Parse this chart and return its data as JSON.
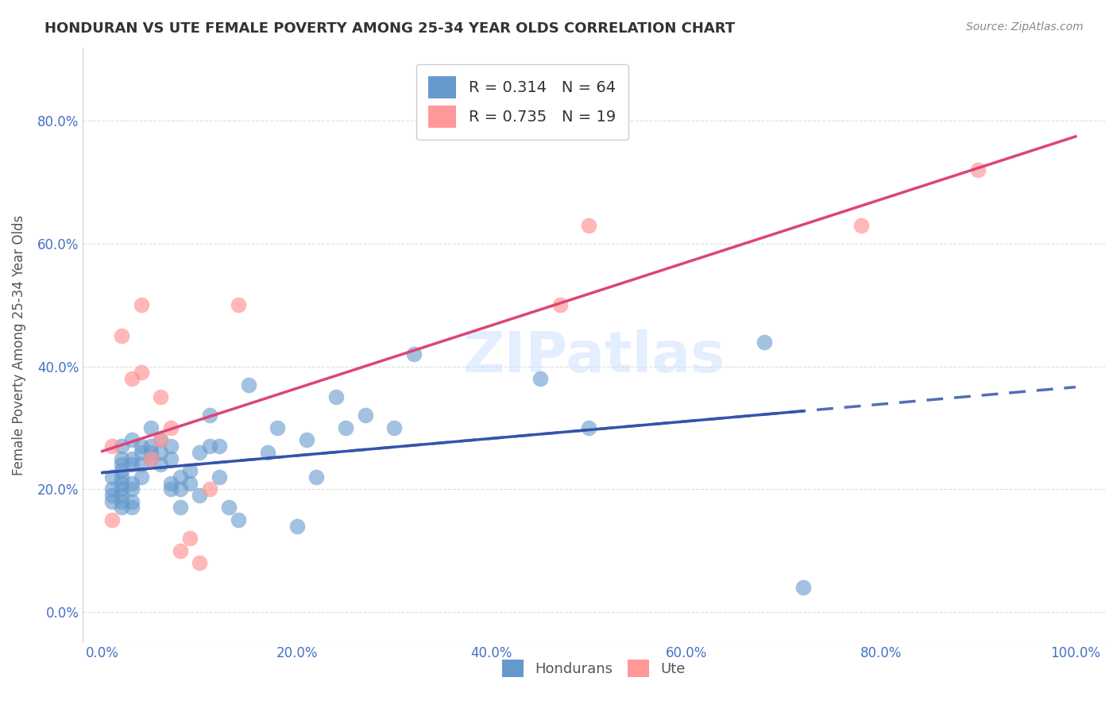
{
  "title": "HONDURAN VS UTE FEMALE POVERTY AMONG 25-34 YEAR OLDS CORRELATION CHART",
  "source": "Source: ZipAtlas.com",
  "ylabel": "Female Poverty Among 25-34 Year Olds",
  "xlabel_color": "#4472c4",
  "ylabel_color": "#333333",
  "watermark": "ZIPatlas",
  "xlim": [
    0.0,
    1.0
  ],
  "ylim": [
    0.0,
    0.9
  ],
  "xticks": [
    0.0,
    0.2,
    0.4,
    0.6,
    0.8,
    1.0
  ],
  "yticks": [
    0.0,
    0.2,
    0.4,
    0.6,
    0.8
  ],
  "xtick_labels": [
    "0.0%",
    "20.0%",
    "40.0%",
    "60.0%",
    "80.0%",
    "100.0%"
  ],
  "ytick_labels": [
    "0.0%",
    "20.0%",
    "40.0%",
    "60.0%",
    "80.0%"
  ],
  "blue_color": "#6699cc",
  "pink_color": "#ff9999",
  "blue_line_color": "#3355aa",
  "pink_line_color": "#dd4477",
  "legend_R_color": "#4472c4",
  "R_honduran": 0.314,
  "N_honduran": 64,
  "R_ute": 0.735,
  "N_ute": 19,
  "honduran_x": [
    0.01,
    0.01,
    0.01,
    0.01,
    0.02,
    0.02,
    0.02,
    0.02,
    0.02,
    0.02,
    0.02,
    0.02,
    0.02,
    0.02,
    0.03,
    0.03,
    0.03,
    0.03,
    0.03,
    0.03,
    0.03,
    0.04,
    0.04,
    0.04,
    0.04,
    0.05,
    0.05,
    0.05,
    0.05,
    0.06,
    0.06,
    0.06,
    0.07,
    0.07,
    0.07,
    0.07,
    0.08,
    0.08,
    0.08,
    0.09,
    0.09,
    0.1,
    0.1,
    0.11,
    0.11,
    0.12,
    0.12,
    0.13,
    0.14,
    0.15,
    0.17,
    0.18,
    0.2,
    0.21,
    0.22,
    0.24,
    0.25,
    0.27,
    0.3,
    0.32,
    0.45,
    0.5,
    0.68,
    0.72
  ],
  "honduran_y": [
    0.18,
    0.19,
    0.2,
    0.22,
    0.17,
    0.18,
    0.19,
    0.2,
    0.21,
    0.22,
    0.23,
    0.24,
    0.25,
    0.27,
    0.17,
    0.18,
    0.2,
    0.21,
    0.24,
    0.25,
    0.28,
    0.22,
    0.24,
    0.26,
    0.27,
    0.25,
    0.26,
    0.27,
    0.3,
    0.24,
    0.26,
    0.28,
    0.2,
    0.21,
    0.25,
    0.27,
    0.17,
    0.2,
    0.22,
    0.21,
    0.23,
    0.19,
    0.26,
    0.27,
    0.32,
    0.22,
    0.27,
    0.17,
    0.15,
    0.37,
    0.26,
    0.3,
    0.14,
    0.28,
    0.22,
    0.35,
    0.3,
    0.32,
    0.3,
    0.42,
    0.38,
    0.3,
    0.44,
    0.04
  ],
  "ute_x": [
    0.01,
    0.01,
    0.02,
    0.03,
    0.04,
    0.04,
    0.05,
    0.06,
    0.06,
    0.07,
    0.08,
    0.09,
    0.1,
    0.11,
    0.14,
    0.47,
    0.5,
    0.78,
    0.9
  ],
  "ute_y": [
    0.15,
    0.27,
    0.45,
    0.38,
    0.39,
    0.5,
    0.25,
    0.28,
    0.35,
    0.3,
    0.1,
    0.12,
    0.08,
    0.2,
    0.5,
    0.5,
    0.63,
    0.63,
    0.72
  ]
}
